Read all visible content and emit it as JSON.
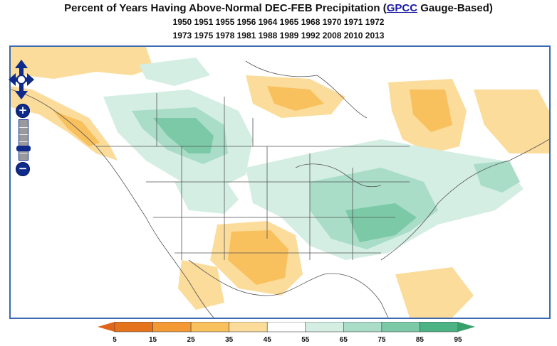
{
  "title": {
    "prefix": "Percent of Years Having Above-Normal DEC-FEB Precipitation (",
    "link": "GPCC",
    "suffix": " Gauge-Based)"
  },
  "years": {
    "line1": "1950 1951 1955 1956 1964 1965 1968 1970 1971 1972",
    "line2": "1973 1975 1978 1981 1988 1989 1992 2008 2010 2013"
  },
  "zoom": {
    "in_label": "+",
    "out_label": "−"
  },
  "legend": {
    "labels": [
      "5",
      "15",
      "25",
      "35",
      "45",
      "55",
      "65",
      "75",
      "85",
      "95"
    ],
    "colors": [
      "#e5731c",
      "#f39a35",
      "#f9c05e",
      "#fbdc9a",
      "#ffffff",
      "#d4eee4",
      "#a9ddc7",
      "#7cc9a8",
      "#4db384"
    ],
    "low_arrow_color": "#e0651a",
    "high_arrow_color": "#35a06a"
  }
}
